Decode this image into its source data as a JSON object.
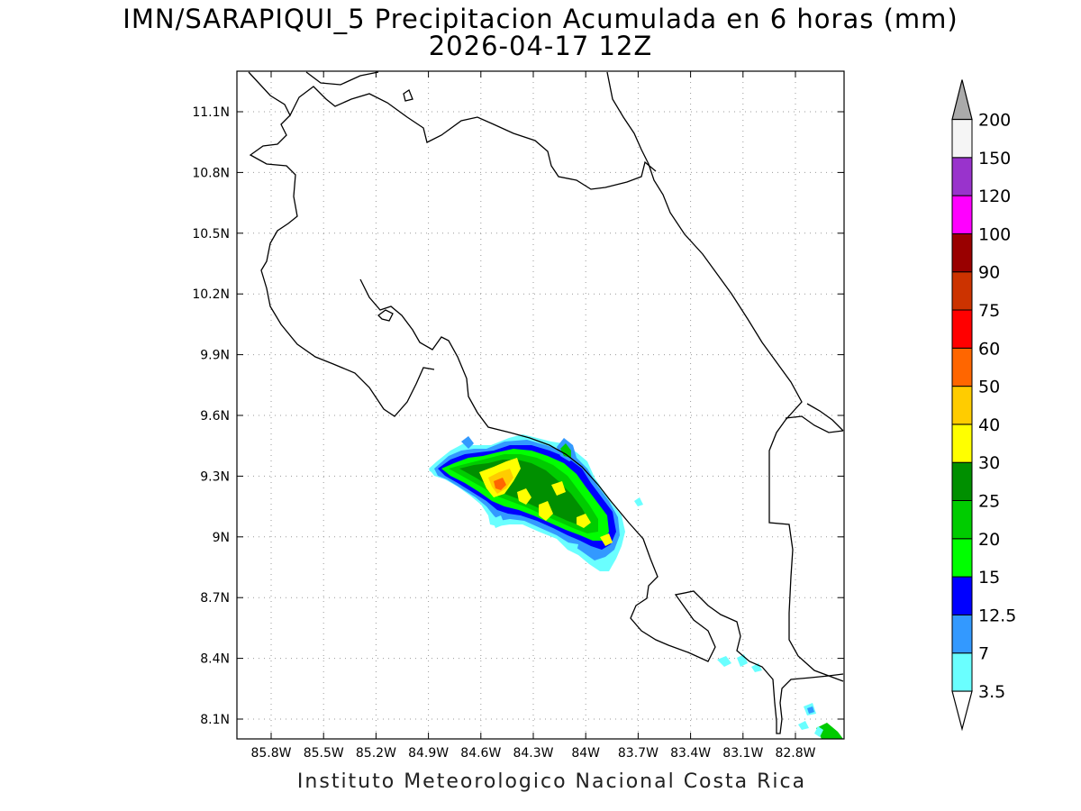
{
  "title": {
    "line1": "IMN/SARAPIQUI_5 Precipitacion Acumulada en 6 horas (mm)",
    "line2": "2026-04-17 12Z"
  },
  "footer": "Instituto Meteorologico Nacional Costa Rica",
  "axes": {
    "lat_labels": [
      "11.1N",
      "10.8N",
      "10.5N",
      "10.2N",
      "9.9N",
      "9.6N",
      "9.3N",
      "9N",
      "8.7N",
      "8.4N",
      "8.1N"
    ],
    "lon_labels": [
      "85.8W",
      "85.5W",
      "85.2W",
      "84.9W",
      "84.6W",
      "84.3W",
      "84W",
      "83.7W",
      "83.4W",
      "83.1W",
      "82.8W"
    ]
  },
  "colorbar": {
    "levels": [
      "3.5",
      "7",
      "12.5",
      "15",
      "20",
      "25",
      "30",
      "40",
      "50",
      "60",
      "75",
      "90",
      "100",
      "120",
      "150",
      "200"
    ],
    "colors": [
      "#6affff",
      "#3399ff",
      "#0000ff",
      "#00ff00",
      "#00cc00",
      "#008f00",
      "#ffff00",
      "#ffcc00",
      "#ff6600",
      "#ff0000",
      "#cc3300",
      "#990000",
      "#ff00ff",
      "#9933cc",
      "#f5f5f5",
      "#aaaaaa"
    ]
  }
}
